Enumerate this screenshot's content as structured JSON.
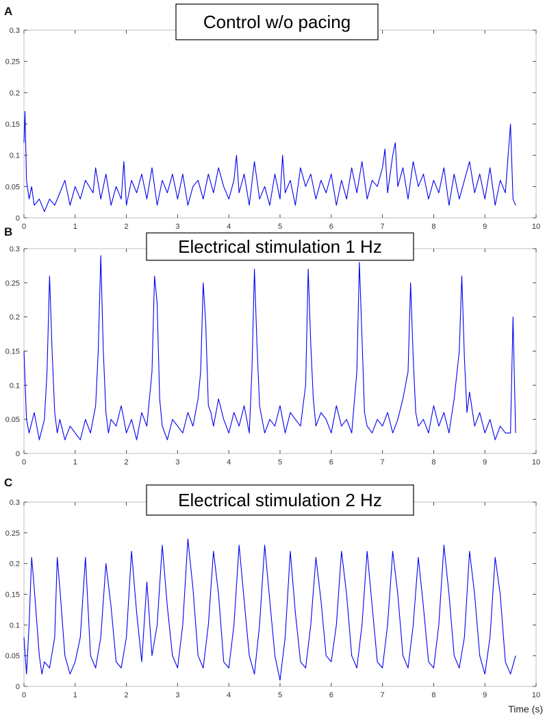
{
  "chart_data": [
    {
      "type": "line",
      "panel": "A",
      "title": "Control w/o pacing",
      "xlabel": "",
      "ylabel": "",
      "xlim": [
        0,
        10
      ],
      "ylim": [
        0,
        0.3
      ],
      "xticks": [
        "0",
        "1",
        "2",
        "3",
        "4",
        "5",
        "6",
        "7",
        "8",
        "9",
        "10"
      ],
      "yticks": [
        "0",
        "0.05",
        "0.1",
        "0.15",
        "0.2",
        "0.25",
        "0.3"
      ],
      "grid": false,
      "series": [
        {
          "color": "#0000ee",
          "x": [
            0,
            0.02,
            0.05,
            0.1,
            0.15,
            0.2,
            0.3,
            0.4,
            0.5,
            0.6,
            0.7,
            0.8,
            0.9,
            1.0,
            1.1,
            1.2,
            1.35,
            1.4,
            1.5,
            1.6,
            1.7,
            1.8,
            1.9,
            1.95,
            2.0,
            2.1,
            2.2,
            2.3,
            2.4,
            2.5,
            2.6,
            2.7,
            2.8,
            2.9,
            3.0,
            3.1,
            3.2,
            3.3,
            3.4,
            3.5,
            3.6,
            3.7,
            3.8,
            3.9,
            4.0,
            4.1,
            4.15,
            4.2,
            4.3,
            4.4,
            4.5,
            4.6,
            4.7,
            4.8,
            4.9,
            5.0,
            5.05,
            5.1,
            5.2,
            5.3,
            5.4,
            5.5,
            5.6,
            5.7,
            5.8,
            5.9,
            6.0,
            6.1,
            6.2,
            6.3,
            6.4,
            6.5,
            6.6,
            6.7,
            6.8,
            6.9,
            7.0,
            7.05,
            7.1,
            7.2,
            7.25,
            7.3,
            7.4,
            7.5,
            7.6,
            7.7,
            7.8,
            7.9,
            8.0,
            8.1,
            8.2,
            8.3,
            8.4,
            8.5,
            8.6,
            8.7,
            8.8,
            8.9,
            9.0,
            9.1,
            9.2,
            9.3,
            9.4,
            9.5,
            9.55,
            9.6
          ],
          "y": [
            0.12,
            0.17,
            0.06,
            0.03,
            0.05,
            0.02,
            0.03,
            0.01,
            0.03,
            0.02,
            0.04,
            0.06,
            0.02,
            0.05,
            0.03,
            0.06,
            0.04,
            0.08,
            0.03,
            0.07,
            0.02,
            0.05,
            0.03,
            0.09,
            0.02,
            0.06,
            0.04,
            0.07,
            0.03,
            0.08,
            0.02,
            0.06,
            0.04,
            0.07,
            0.03,
            0.07,
            0.02,
            0.05,
            0.06,
            0.03,
            0.07,
            0.04,
            0.08,
            0.05,
            0.03,
            0.06,
            0.1,
            0.04,
            0.07,
            0.02,
            0.09,
            0.03,
            0.05,
            0.02,
            0.07,
            0.03,
            0.1,
            0.04,
            0.06,
            0.02,
            0.08,
            0.05,
            0.07,
            0.03,
            0.06,
            0.04,
            0.07,
            0.02,
            0.06,
            0.03,
            0.08,
            0.04,
            0.09,
            0.03,
            0.06,
            0.05,
            0.08,
            0.11,
            0.04,
            0.1,
            0.12,
            0.05,
            0.08,
            0.03,
            0.09,
            0.05,
            0.07,
            0.03,
            0.06,
            0.04,
            0.08,
            0.02,
            0.07,
            0.03,
            0.06,
            0.09,
            0.04,
            0.07,
            0.03,
            0.08,
            0.02,
            0.06,
            0.04,
            0.15,
            0.03,
            0.02
          ]
        }
      ]
    },
    {
      "type": "line",
      "panel": "B",
      "title": "Electrical stimulation 1 Hz",
      "xlabel": "",
      "ylabel": "",
      "xlim": [
        0,
        10
      ],
      "ylim": [
        0,
        0.3
      ],
      "xticks": [
        "0",
        "1",
        "2",
        "3",
        "4",
        "5",
        "6",
        "7",
        "8",
        "9",
        "10"
      ],
      "yticks": [
        "0",
        "0.05",
        "0.1",
        "0.15",
        "0.2",
        "0.25",
        "0.3"
      ],
      "grid": false,
      "series": [
        {
          "color": "#0000ee",
          "x": [
            0,
            0.05,
            0.1,
            0.2,
            0.3,
            0.4,
            0.45,
            0.5,
            0.55,
            0.6,
            0.65,
            0.7,
            0.8,
            0.9,
            1.0,
            1.1,
            1.2,
            1.3,
            1.4,
            1.45,
            1.5,
            1.55,
            1.6,
            1.65,
            1.7,
            1.8,
            1.9,
            2.0,
            2.1,
            2.2,
            2.3,
            2.4,
            2.5,
            2.55,
            2.6,
            2.65,
            2.7,
            2.8,
            2.9,
            3.0,
            3.1,
            3.2,
            3.3,
            3.4,
            3.45,
            3.5,
            3.55,
            3.6,
            3.65,
            3.7,
            3.8,
            3.9,
            4.0,
            4.1,
            4.2,
            4.3,
            4.4,
            4.45,
            4.5,
            4.55,
            4.6,
            4.65,
            4.7,
            4.8,
            4.9,
            5.0,
            5.1,
            5.2,
            5.3,
            5.4,
            5.5,
            5.55,
            5.6,
            5.65,
            5.7,
            5.8,
            5.9,
            6.0,
            6.1,
            6.2,
            6.3,
            6.4,
            6.5,
            6.55,
            6.6,
            6.65,
            6.7,
            6.8,
            6.9,
            7.0,
            7.1,
            7.2,
            7.3,
            7.4,
            7.5,
            7.55,
            7.6,
            7.65,
            7.7,
            7.8,
            7.9,
            8.0,
            8.1,
            8.2,
            8.3,
            8.4,
            8.5,
            8.55,
            8.6,
            8.65,
            8.7,
            8.8,
            8.9,
            9.0,
            9.1,
            9.2,
            9.3,
            9.4,
            9.5,
            9.55,
            9.6
          ],
          "y": [
            0.15,
            0.05,
            0.03,
            0.06,
            0.02,
            0.05,
            0.12,
            0.26,
            0.15,
            0.06,
            0.03,
            0.05,
            0.02,
            0.04,
            0.03,
            0.02,
            0.05,
            0.03,
            0.07,
            0.15,
            0.29,
            0.15,
            0.06,
            0.03,
            0.05,
            0.04,
            0.07,
            0.03,
            0.05,
            0.02,
            0.06,
            0.04,
            0.12,
            0.26,
            0.22,
            0.08,
            0.04,
            0.02,
            0.05,
            0.04,
            0.03,
            0.06,
            0.04,
            0.08,
            0.12,
            0.25,
            0.19,
            0.07,
            0.06,
            0.04,
            0.08,
            0.05,
            0.03,
            0.06,
            0.04,
            0.07,
            0.03,
            0.12,
            0.27,
            0.16,
            0.07,
            0.05,
            0.03,
            0.05,
            0.04,
            0.07,
            0.03,
            0.06,
            0.05,
            0.04,
            0.1,
            0.27,
            0.16,
            0.08,
            0.04,
            0.06,
            0.05,
            0.03,
            0.07,
            0.04,
            0.05,
            0.03,
            0.12,
            0.28,
            0.17,
            0.06,
            0.04,
            0.03,
            0.05,
            0.04,
            0.06,
            0.03,
            0.05,
            0.08,
            0.12,
            0.25,
            0.14,
            0.06,
            0.04,
            0.05,
            0.03,
            0.07,
            0.04,
            0.06,
            0.03,
            0.08,
            0.15,
            0.26,
            0.14,
            0.06,
            0.09,
            0.04,
            0.06,
            0.03,
            0.05,
            0.02,
            0.04,
            0.03,
            0.03,
            0.2,
            0.03
          ]
        }
      ]
    },
    {
      "type": "line",
      "panel": "C",
      "title": "Electrical stimulation 2 Hz",
      "xlabel": "Time (s)",
      "ylabel": "",
      "xlim": [
        0,
        10
      ],
      "ylim": [
        0,
        0.3
      ],
      "xticks": [
        "0",
        "1",
        "2",
        "3",
        "4",
        "5",
        "6",
        "7",
        "8",
        "9",
        "10"
      ],
      "yticks": [
        "0",
        "0.05",
        "0.1",
        "0.15",
        "0.2",
        "0.25",
        "0.3"
      ],
      "grid": false,
      "series": [
        {
          "color": "#0000ee",
          "x": [
            0,
            0.05,
            0.1,
            0.15,
            0.2,
            0.3,
            0.35,
            0.4,
            0.5,
            0.6,
            0.65,
            0.7,
            0.8,
            0.9,
            1.0,
            1.1,
            1.2,
            1.25,
            1.3,
            1.4,
            1.5,
            1.6,
            1.7,
            1.8,
            1.9,
            2.0,
            2.1,
            2.2,
            2.3,
            2.4,
            2.5,
            2.6,
            2.7,
            2.8,
            2.9,
            3.0,
            3.1,
            3.2,
            3.3,
            3.4,
            3.5,
            3.6,
            3.7,
            3.8,
            3.9,
            4.0,
            4.1,
            4.2,
            4.3,
            4.4,
            4.5,
            4.6,
            4.7,
            4.8,
            4.9,
            5.0,
            5.1,
            5.2,
            5.3,
            5.4,
            5.5,
            5.6,
            5.7,
            5.8,
            5.9,
            6.0,
            6.1,
            6.2,
            6.3,
            6.4,
            6.5,
            6.6,
            6.7,
            6.8,
            6.9,
            7.0,
            7.1,
            7.2,
            7.3,
            7.4,
            7.5,
            7.6,
            7.7,
            7.8,
            7.9,
            8.0,
            8.1,
            8.2,
            8.3,
            8.4,
            8.5,
            8.6,
            8.7,
            8.8,
            8.9,
            9.0,
            9.1,
            9.2,
            9.3,
            9.4,
            9.5,
            9.6
          ],
          "y": [
            0.08,
            0.02,
            0.1,
            0.21,
            0.16,
            0.05,
            0.02,
            0.04,
            0.03,
            0.08,
            0.21,
            0.16,
            0.05,
            0.02,
            0.04,
            0.08,
            0.21,
            0.13,
            0.05,
            0.03,
            0.08,
            0.2,
            0.13,
            0.04,
            0.03,
            0.08,
            0.22,
            0.12,
            0.04,
            0.17,
            0.05,
            0.1,
            0.23,
            0.13,
            0.05,
            0.03,
            0.1,
            0.24,
            0.16,
            0.05,
            0.03,
            0.1,
            0.22,
            0.15,
            0.04,
            0.03,
            0.1,
            0.23,
            0.14,
            0.05,
            0.02,
            0.1,
            0.23,
            0.14,
            0.05,
            0.01,
            0.08,
            0.22,
            0.12,
            0.04,
            0.03,
            0.1,
            0.21,
            0.14,
            0.05,
            0.04,
            0.1,
            0.22,
            0.15,
            0.05,
            0.03,
            0.1,
            0.22,
            0.13,
            0.04,
            0.03,
            0.1,
            0.22,
            0.15,
            0.05,
            0.03,
            0.1,
            0.21,
            0.13,
            0.04,
            0.03,
            0.1,
            0.23,
            0.15,
            0.05,
            0.03,
            0.08,
            0.22,
            0.15,
            0.05,
            0.02,
            0.08,
            0.21,
            0.15,
            0.04,
            0.02,
            0.05
          ]
        }
      ]
    }
  ]
}
